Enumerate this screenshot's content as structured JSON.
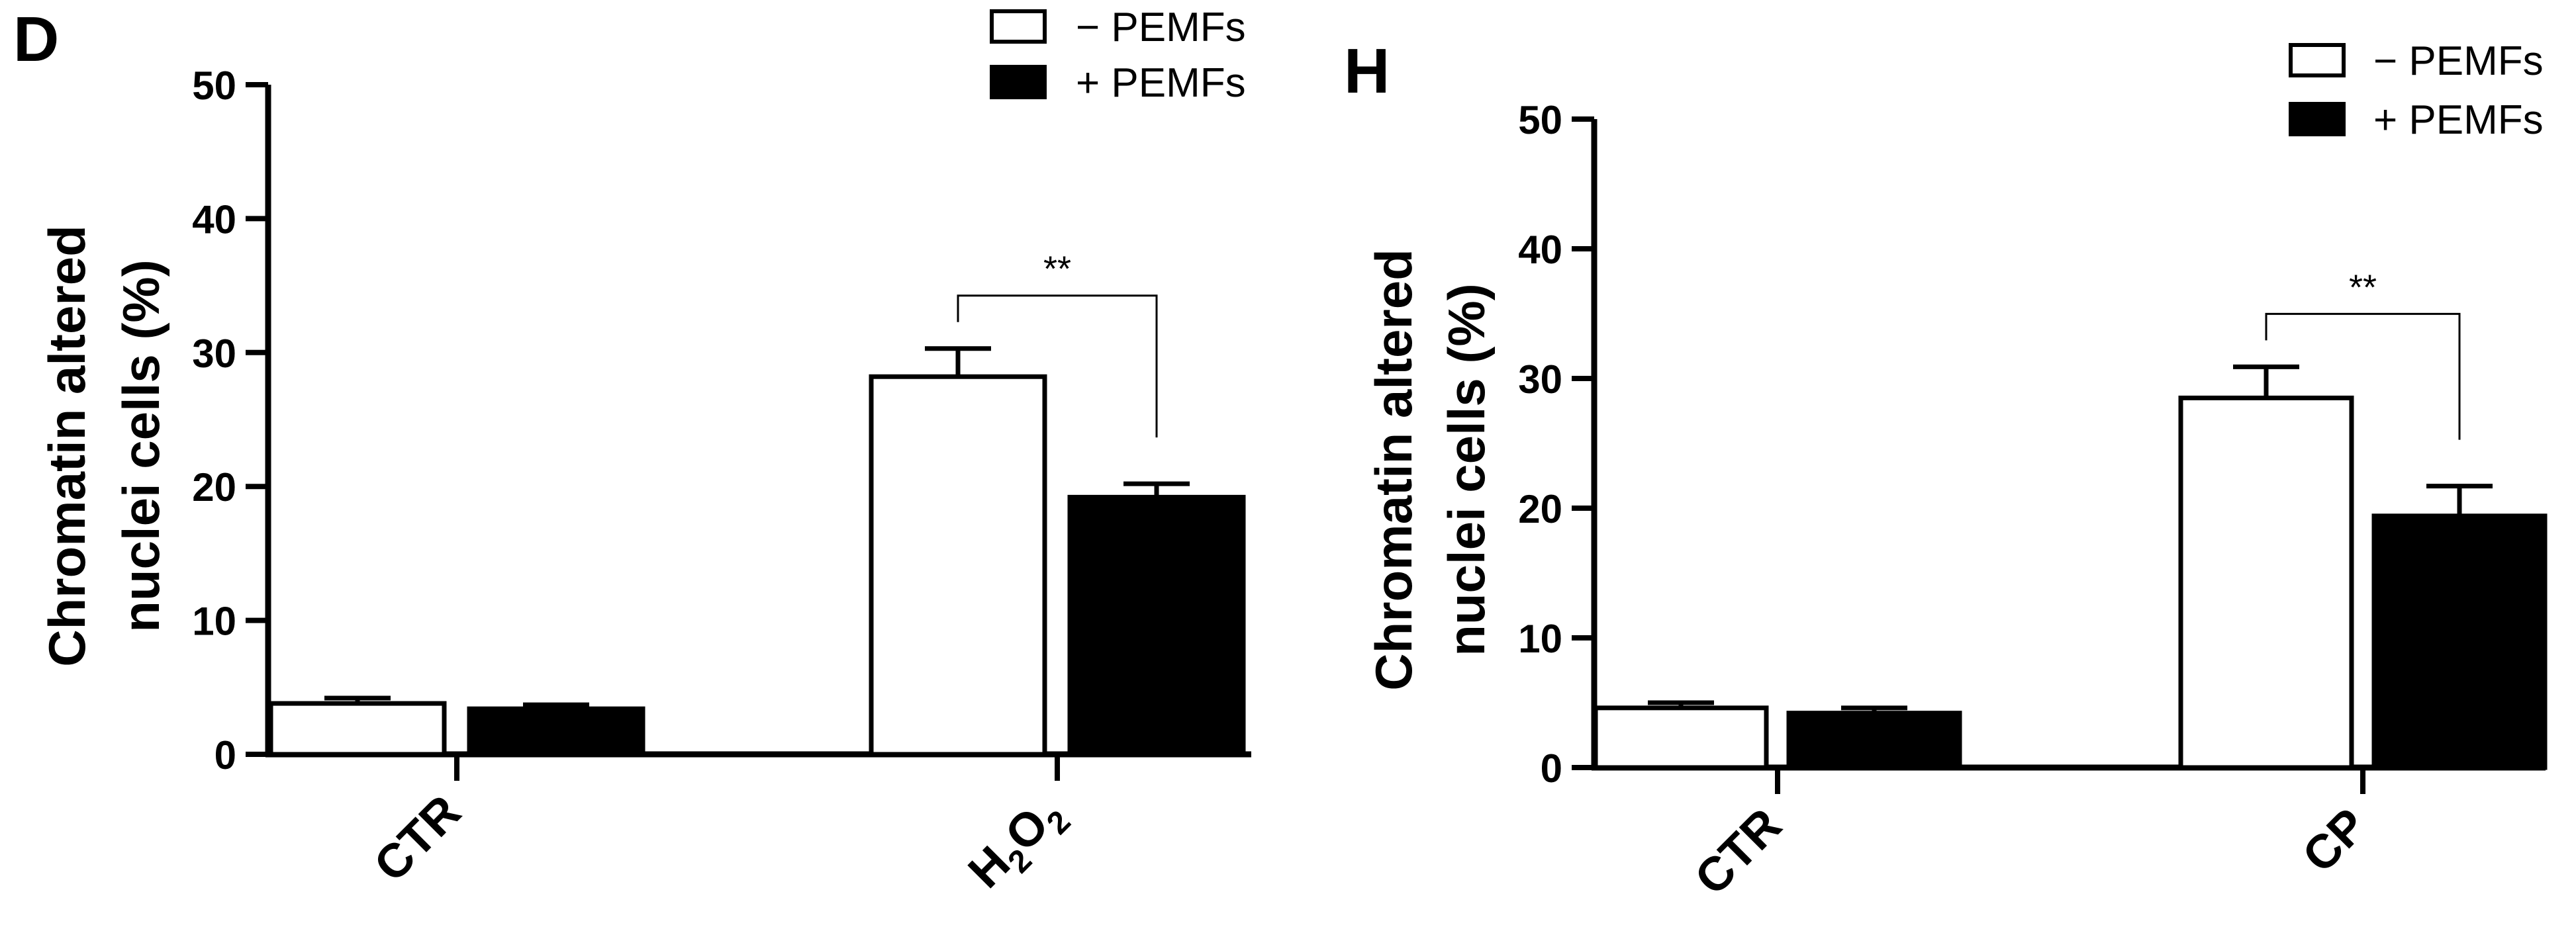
{
  "chart_data": [
    {
      "panel_label": "D",
      "type": "bar",
      "categories": [
        "CTR",
        "H2O2"
      ],
      "category_display": [
        {
          "parts": [
            {
              "text": "CTR",
              "sub": false
            }
          ]
        },
        {
          "parts": [
            {
              "text": "H",
              "sub": false
            },
            {
              "text": "2",
              "sub": true
            },
            {
              "text": "O",
              "sub": false
            },
            {
              "text": "2",
              "sub": true
            }
          ]
        }
      ],
      "series": [
        {
          "name": "− PEMFs",
          "fill": "#ffffff",
          "values": [
            3.8,
            28.2
          ],
          "errors": [
            0.4,
            2.1
          ]
        },
        {
          "name": "+ PEMFs",
          "fill": "#000000",
          "values": [
            3.4,
            19.2
          ],
          "errors": [
            0.3,
            1.0
          ]
        }
      ],
      "ylabel": [
        "Chromatin altered",
        "nuclei cells (%)"
      ],
      "ylim": [
        0,
        50
      ],
      "yticks": [
        "0",
        "10",
        "20",
        "30",
        "40",
        "50"
      ],
      "grid": false,
      "legend": "top-right",
      "annotations": [
        {
          "text": "**",
          "category": 1,
          "between_series": [
            0,
            1
          ]
        }
      ]
    },
    {
      "panel_label": "H",
      "type": "bar",
      "categories": [
        "CTR",
        "CP"
      ],
      "category_display": [
        {
          "parts": [
            {
              "text": "CTR",
              "sub": false
            }
          ]
        },
        {
          "parts": [
            {
              "text": "CP",
              "sub": false
            }
          ]
        }
      ],
      "series": [
        {
          "name": "− PEMFs",
          "fill": "#ffffff",
          "values": [
            4.6,
            28.5
          ],
          "errors": [
            0.4,
            2.4
          ]
        },
        {
          "name": "+ PEMFs",
          "fill": "#000000",
          "values": [
            4.2,
            19.4
          ],
          "errors": [
            0.4,
            2.3
          ]
        }
      ],
      "ylabel": [
        "Chromatin altered",
        "nuclei cells (%)"
      ],
      "ylim": [
        0,
        50
      ],
      "yticks": [
        "0",
        "10",
        "20",
        "30",
        "40",
        "50"
      ],
      "grid": false,
      "legend": "top-right",
      "annotations": [
        {
          "text": "**",
          "category": 1,
          "between_series": [
            0,
            1
          ]
        }
      ]
    }
  ]
}
